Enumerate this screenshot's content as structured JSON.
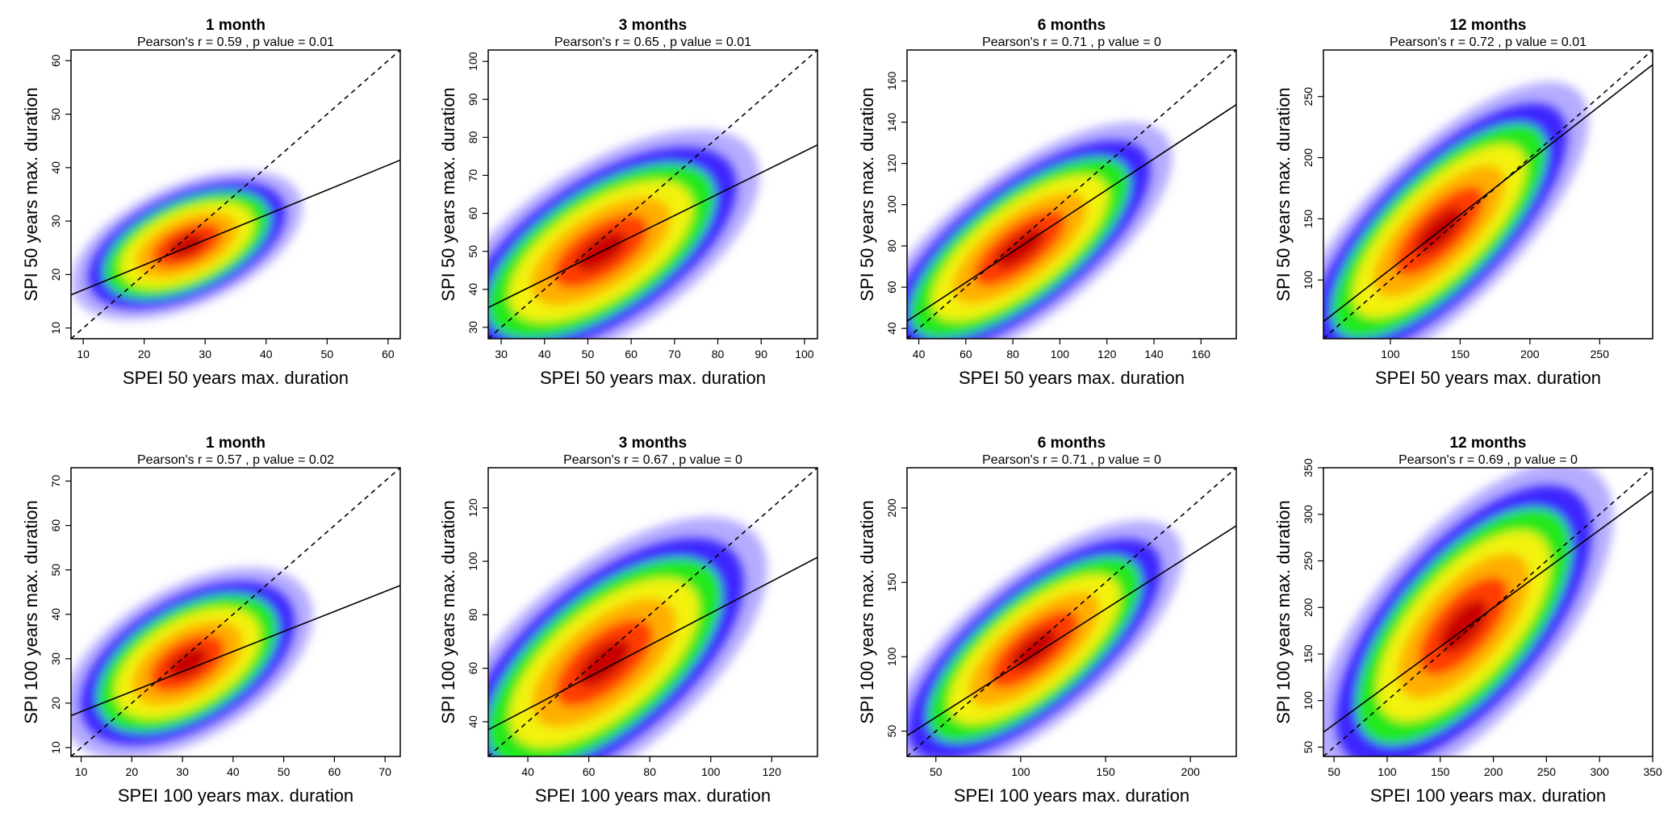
{
  "colors": {
    "density": [
      "#7766ff",
      "#3d26ff",
      "#21e81c",
      "#f2f20a",
      "#ffae00",
      "#ff3d00",
      "#c80000"
    ],
    "frame": "#000000"
  },
  "chart_data": [
    {
      "type": "heatmap",
      "title": "1 month",
      "subtitle": "Pearson's r = 0.59 , p value = 0.01",
      "xlabel": "SPEI 50 years max. duration",
      "ylabel": "SPI 50 years max. duration",
      "xlim": [
        8,
        62
      ],
      "ylim": [
        8,
        62
      ],
      "xticks": [
        10,
        20,
        30,
        40,
        50,
        60
      ],
      "yticks": [
        10,
        20,
        30,
        40,
        50,
        60
      ],
      "identity_line": "dashed",
      "regression_line": {
        "x": [
          8,
          62
        ],
        "y": [
          16.2,
          41.4
        ]
      },
      "density_center": [
        27,
        25.5
      ],
      "density_spread": [
        6.5,
        4.2
      ],
      "density_rho": 0.5,
      "density_extent": 3.1
    },
    {
      "type": "heatmap",
      "title": "3 months",
      "subtitle": "Pearson's r = 0.65 , p value = 0.01",
      "xlabel": "SPEI 50 years max. duration",
      "ylabel": "SPI 50 years max. duration",
      "xlim": [
        27,
        103
      ],
      "ylim": [
        27,
        103
      ],
      "xticks": [
        30,
        40,
        50,
        60,
        70,
        80,
        90,
        100
      ],
      "yticks": [
        30,
        40,
        50,
        60,
        70,
        80,
        90,
        100
      ],
      "identity_line": "dashed",
      "regression_line": {
        "x": [
          27,
          103
        ],
        "y": [
          35.2,
          78
        ]
      },
      "density_center": [
        53,
        50
      ],
      "density_spread": [
        13,
        10
      ],
      "density_rho": 0.62,
      "density_extent": 3.0
    },
    {
      "type": "heatmap",
      "title": "6 months",
      "subtitle": "Pearson's r = 0.71 , p value = 0",
      "xlabel": "SPEI 50 years max. duration",
      "ylabel": "SPI 50 years max. duration",
      "xlim": [
        35,
        175
      ],
      "ylim": [
        35,
        175
      ],
      "xticks": [
        40,
        60,
        80,
        100,
        120,
        140,
        160
      ],
      "yticks": [
        40,
        60,
        80,
        100,
        120,
        140,
        160
      ],
      "identity_line": "dashed",
      "regression_line": {
        "x": [
          35,
          175
        ],
        "y": [
          43.5,
          148.5
        ]
      },
      "density_center": [
        83,
        79
      ],
      "density_spread": [
        23,
        19
      ],
      "density_rho": 0.72,
      "density_extent": 3.0
    },
    {
      "type": "heatmap",
      "title": "12 months",
      "subtitle": "Pearson's r = 0.72 , p value = 0.01",
      "xlabel": "SPEI 50 years max. duration",
      "ylabel": "SPI 50 years max. duration",
      "xlim": [
        52,
        288
      ],
      "ylim": [
        52,
        288
      ],
      "xticks": [
        100,
        150,
        200,
        250
      ],
      "yticks": [
        100,
        150,
        200,
        250
      ],
      "identity_line": "dashed",
      "regression_line": {
        "x": [
          52,
          288
        ],
        "y": [
          66,
          276
        ]
      },
      "density_center": [
        135,
        140
      ],
      "density_spread": [
        38,
        38
      ],
      "density_rho": 0.74,
      "density_extent": 3.0
    },
    {
      "type": "heatmap",
      "title": "1 month",
      "subtitle": "Pearson's r = 0.57 , p value = 0.02",
      "xlabel": "SPEI 100 years max. duration",
      "ylabel": "SPI 100 years max. duration",
      "xlim": [
        8,
        73
      ],
      "ylim": [
        8,
        73
      ],
      "xticks": [
        10,
        20,
        30,
        40,
        50,
        60,
        70
      ],
      "yticks": [
        10,
        20,
        30,
        40,
        50,
        60,
        70
      ],
      "identity_line": "dashed",
      "regression_line": {
        "x": [
          8,
          73
        ],
        "y": [
          17.2,
          46.5
        ]
      },
      "density_center": [
        31,
        29
      ],
      "density_spread": [
        8.5,
        6.5
      ],
      "density_rho": 0.5,
      "density_extent": 3.1
    },
    {
      "type": "heatmap",
      "title": "3 months",
      "subtitle": "Pearson's r = 0.67 , p value = 0",
      "xlabel": "SPEI 100 years max. duration",
      "ylabel": "SPI 100 years max. duration",
      "xlim": [
        27,
        135
      ],
      "ylim": [
        27,
        135
      ],
      "xticks": [
        40,
        60,
        80,
        100,
        120
      ],
      "yticks": [
        40,
        60,
        80,
        100,
        120
      ],
      "identity_line": "dashed",
      "regression_line": {
        "x": [
          27,
          135
        ],
        "y": [
          37,
          101.5
        ]
      },
      "density_center": [
        65,
        62
      ],
      "density_spread": [
        19,
        17
      ],
      "density_rho": 0.64,
      "density_extent": 3.0
    },
    {
      "type": "heatmap",
      "title": "6 months",
      "subtitle": "Pearson's r = 0.71 , p value = 0",
      "xlabel": "SPEI 100 years max. duration",
      "ylabel": "SPI 100 years max. duration",
      "xlim": [
        33,
        227
      ],
      "ylim": [
        33,
        227
      ],
      "xticks": [
        50,
        100,
        150,
        200
      ],
      "yticks": [
        50,
        100,
        150,
        200
      ],
      "identity_line": "dashed",
      "regression_line": {
        "x": [
          33,
          227
        ],
        "y": [
          47,
          188
        ]
      },
      "density_center": [
        108,
        105
      ],
      "density_spread": [
        31,
        27
      ],
      "density_rho": 0.72,
      "density_extent": 3.0
    },
    {
      "type": "heatmap",
      "title": "12 months",
      "subtitle": "Pearson's r = 0.69 , p value = 0",
      "xlabel": "SPEI 100 years max. duration",
      "ylabel": "SPI 100 years max. duration",
      "xlim": [
        40,
        350
      ],
      "ylim": [
        40,
        350
      ],
      "xticks": [
        50,
        100,
        150,
        200,
        250,
        300,
        350
      ],
      "yticks": [
        50,
        100,
        150,
        200,
        250,
        300,
        350
      ],
      "identity_line": "dashed",
      "regression_line": {
        "x": [
          40,
          350
        ],
        "y": [
          66,
          325
        ]
      },
      "density_center": [
        172,
        180
      ],
      "density_spread": [
        50,
        55
      ],
      "density_rho": 0.66,
      "density_extent": 3.0
    }
  ]
}
